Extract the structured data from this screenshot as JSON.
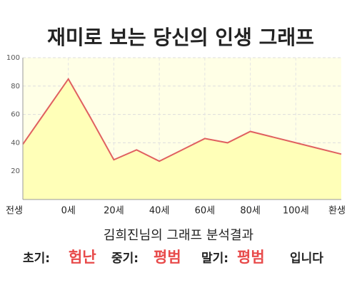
{
  "chart_data": {
    "type": "area",
    "title": "재미로 보는 당신의 인생 그래프",
    "categories": [
      "전생",
      null,
      "0세",
      null,
      "20세",
      null,
      "40세",
      null,
      "60세",
      null,
      "80세",
      null,
      "100세",
      null,
      "환생"
    ],
    "values": [
      39,
      62,
      85,
      57,
      28,
      35,
      27,
      35,
      43,
      40,
      48,
      44,
      40,
      36,
      32
    ],
    "color": "#e06060",
    "fill": "#ffffb8",
    "background": "#ffffe6",
    "ylim": [
      0,
      100
    ],
    "yticks": [
      20,
      40,
      60,
      80,
      100
    ],
    "grid": true
  },
  "result": {
    "heading": "김희진님의 그래프 분석결과",
    "parts": [
      {
        "label": "초기:",
        "value": "험난"
      },
      {
        "label": "중기:",
        "value": "평범"
      },
      {
        "label": "말기:",
        "value": "평범"
      }
    ],
    "ending": "입니다"
  }
}
